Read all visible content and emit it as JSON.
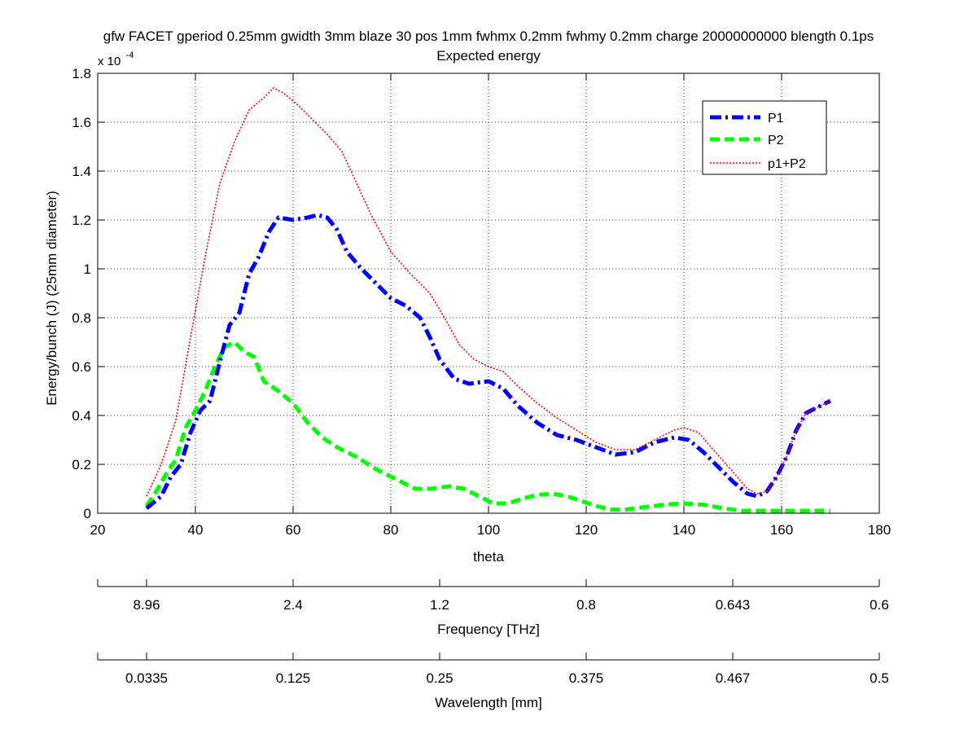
{
  "chart_data": {
    "type": "line",
    "title_line1": "gfw FACET gperiod 0.25mm gwidth 3mm blaze 30 pos 1mm fwhmx 0.2mm fwhmy 0.2mm charge 20000000000 blength 0.1ps",
    "title_line2": "Expected energy",
    "xlabel": "theta",
    "ylabel": "Energy/bunch (J) (25mm diameter)",
    "y_multiplier_base": "x 10",
    "y_multiplier_exp": "-4",
    "xlim": [
      20,
      180
    ],
    "ylim": [
      0,
      1.8
    ],
    "x_ticks": [
      20,
      40,
      60,
      80,
      100,
      120,
      140,
      160,
      180
    ],
    "y_ticks": [
      0,
      0.2,
      0.4,
      0.6,
      0.8,
      1,
      1.2,
      1.4,
      1.6,
      1.8
    ],
    "y_tick_labels": [
      "0",
      "0.2",
      "0.4",
      "0.6",
      "0.8",
      "1",
      "1.2",
      "1.4",
      "1.6",
      "1.8"
    ],
    "grid": true,
    "legend_position": "top-right",
    "series": [
      {
        "name": "P1",
        "color": "#0000ff",
        "style": "dashdot",
        "x": [
          30,
          33,
          35,
          37,
          39,
          41,
          43,
          45,
          47,
          49,
          51,
          53,
          55,
          57,
          60,
          63,
          65,
          67,
          69,
          71,
          74,
          77,
          80,
          83,
          86,
          88,
          90,
          93,
          96,
          100,
          103,
          106,
          110,
          114,
          118,
          122,
          126,
          130,
          134,
          138,
          141,
          144,
          147,
          150,
          153,
          155,
          157,
          159,
          161,
          163,
          165,
          168,
          170
        ],
        "y": [
          0.02,
          0.07,
          0.15,
          0.2,
          0.33,
          0.42,
          0.46,
          0.62,
          0.77,
          0.82,
          0.98,
          1.05,
          1.15,
          1.21,
          1.2,
          1.21,
          1.22,
          1.21,
          1.16,
          1.07,
          1.0,
          0.94,
          0.88,
          0.85,
          0.8,
          0.72,
          0.63,
          0.55,
          0.53,
          0.54,
          0.51,
          0.44,
          0.37,
          0.32,
          0.3,
          0.27,
          0.24,
          0.25,
          0.29,
          0.31,
          0.3,
          0.25,
          0.19,
          0.13,
          0.08,
          0.07,
          0.09,
          0.15,
          0.23,
          0.34,
          0.41,
          0.44,
          0.46
        ]
      },
      {
        "name": "P2",
        "color": "#00ff00",
        "style": "dashed",
        "x": [
          30,
          32,
          34,
          36,
          38,
          40,
          42,
          44,
          46,
          48,
          50,
          52,
          54,
          57,
          60,
          63,
          66,
          69,
          73,
          77,
          81,
          85,
          88,
          92,
          95,
          98,
          101,
          104,
          107,
          110,
          113,
          116,
          119,
          122,
          125,
          128,
          132,
          136,
          140,
          144,
          148,
          152,
          156,
          160,
          164,
          170
        ],
        "y": [
          0.03,
          0.09,
          0.16,
          0.22,
          0.35,
          0.42,
          0.5,
          0.6,
          0.68,
          0.7,
          0.66,
          0.64,
          0.54,
          0.5,
          0.45,
          0.37,
          0.31,
          0.27,
          0.23,
          0.18,
          0.14,
          0.1,
          0.1,
          0.11,
          0.1,
          0.07,
          0.04,
          0.04,
          0.06,
          0.075,
          0.08,
          0.07,
          0.05,
          0.03,
          0.015,
          0.015,
          0.025,
          0.035,
          0.04,
          0.035,
          0.02,
          0.01,
          0.01,
          0.01,
          0.01,
          0.01
        ]
      },
      {
        "name": "p1+P2",
        "color": "#ff0000",
        "style": "dotted",
        "x": [
          30,
          33,
          36,
          39,
          42,
          45,
          48,
          51,
          54,
          56,
          58,
          61,
          64,
          67,
          70,
          73,
          76,
          80,
          84,
          88,
          91,
          94,
          97,
          100,
          103,
          106,
          110,
          114,
          118,
          122,
          126,
          130,
          134,
          138,
          140,
          143,
          146,
          150,
          153,
          155,
          157,
          159,
          161,
          163,
          165,
          168,
          170
        ],
        "y": [
          0.07,
          0.2,
          0.38,
          0.72,
          1.05,
          1.35,
          1.52,
          1.65,
          1.7,
          1.74,
          1.72,
          1.67,
          1.61,
          1.55,
          1.48,
          1.35,
          1.22,
          1.07,
          0.98,
          0.9,
          0.8,
          0.69,
          0.63,
          0.6,
          0.58,
          0.52,
          0.45,
          0.39,
          0.34,
          0.29,
          0.26,
          0.26,
          0.3,
          0.34,
          0.35,
          0.33,
          0.26,
          0.17,
          0.1,
          0.08,
          0.09,
          0.15,
          0.23,
          0.34,
          0.41,
          0.44,
          0.46
        ]
      }
    ],
    "secondary_axes": [
      {
        "label": "Frequency [THz]",
        "ticks": [
          {
            "theta": 30,
            "label": "8.96"
          },
          {
            "theta": 60,
            "label": "2.4"
          },
          {
            "theta": 90,
            "label": "1.2"
          },
          {
            "theta": 120,
            "label": "0.8"
          },
          {
            "theta": 150,
            "label": "0.643"
          },
          {
            "theta": 180,
            "label": "0.6"
          }
        ]
      },
      {
        "label": "Wavelength [mm]",
        "ticks": [
          {
            "theta": 30,
            "label": "0.0335"
          },
          {
            "theta": 60,
            "label": "0.125"
          },
          {
            "theta": 90,
            "label": "0.25"
          },
          {
            "theta": 120,
            "label": "0.375"
          },
          {
            "theta": 150,
            "label": "0.467"
          },
          {
            "theta": 180,
            "label": "0.5"
          }
        ]
      }
    ]
  }
}
